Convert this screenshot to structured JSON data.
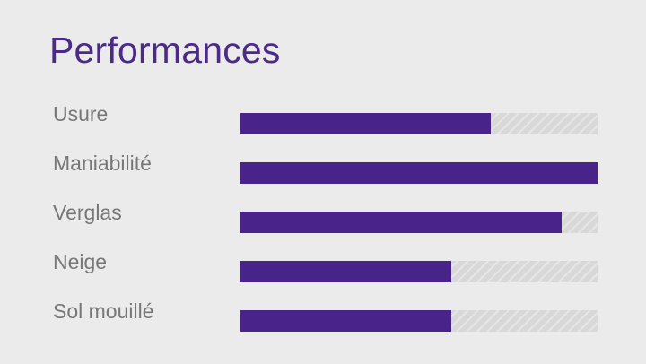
{
  "title": "Performances",
  "accent_color": "#47238a",
  "track_color": "#d8d8d8",
  "rows": [
    {
      "label": "Usure",
      "level_percent": 70
    },
    {
      "label": "Maniabilité",
      "level_percent": 100
    },
    {
      "label": "Verglas",
      "level_percent": 90
    },
    {
      "label": "Neige",
      "level_percent": 59
    },
    {
      "label": "Sol mouillé",
      "level_percent": 59
    }
  ]
}
